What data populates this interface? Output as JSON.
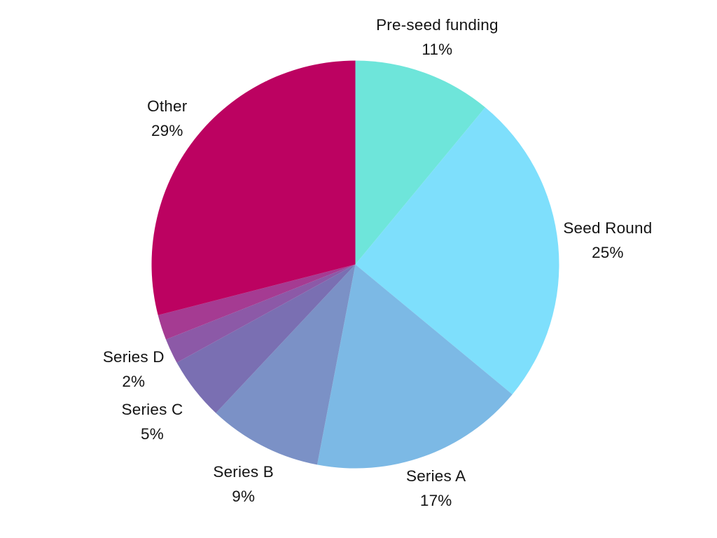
{
  "page": {
    "background": "#ffffff",
    "text_color": "#141414"
  },
  "chart_data": {
    "type": "pie",
    "title": "",
    "legend_position": "none",
    "labels_position": "outside",
    "value_suffix": "%",
    "direction": "clockwise",
    "start_angle_deg": 0,
    "center": {
      "x": 507.5,
      "y": 377.5
    },
    "radius": 291,
    "default_label_radius": 348,
    "segments": [
      {
        "label": "Pre-seed funding",
        "value": 11,
        "color": "#6ee5da",
        "label_radius": 345
      },
      {
        "label": "Seed Round",
        "value": 25,
        "color": "#7edffc",
        "label_radius": 362
      },
      {
        "label": "Series A",
        "value": 17,
        "color": "#7cb9e5",
        "label_radius": 340
      },
      {
        "label": "Series B",
        "value": 9,
        "color": "#7b91c6",
        "label_radius": 352
      },
      {
        "label": "Series C",
        "value": 5,
        "color": "#7a6fb2",
        "label_radius": 367
      },
      {
        "label": "Series D",
        "value": 2,
        "color": "#8c59a7",
        "label_radius": 350
      },
      {
        "label": "",
        "value": 2,
        "color": "#a53b92",
        "label_radius": null
      },
      {
        "label": "Other",
        "value": 29,
        "color": "#bc0261",
        "label_radius": 340
      }
    ]
  }
}
